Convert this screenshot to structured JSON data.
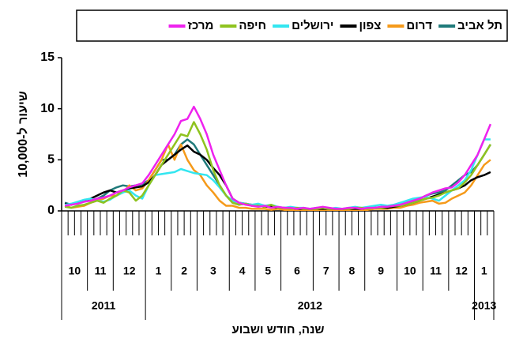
{
  "chart_data": {
    "type": "line",
    "y_label": "שיעור ל-10,000",
    "x_label": "שנה, חודש ושבוע",
    "categories": [
      "10",
      "10",
      "10",
      "10",
      "11",
      "11",
      "11",
      "11",
      "12",
      "12",
      "12",
      "12",
      "12",
      "1",
      "1",
      "1",
      "1",
      "2",
      "2",
      "2",
      "2",
      "3",
      "3",
      "3",
      "3",
      "3",
      "4",
      "4",
      "4",
      "4",
      "5",
      "5",
      "5",
      "5",
      "6",
      "6",
      "6",
      "6",
      "6",
      "7",
      "7",
      "7",
      "7",
      "8",
      "8",
      "8",
      "8",
      "9",
      "9",
      "9",
      "9",
      "9",
      "10",
      "10",
      "10",
      "10",
      "11",
      "11",
      "11",
      "11",
      "12",
      "12",
      "12",
      "12",
      "1",
      "1",
      "1"
    ],
    "years": [
      "2011",
      "2011",
      "2011",
      "2011",
      "2011",
      "2011",
      "2011",
      "2011",
      "2011",
      "2011",
      "2011",
      "2011",
      "2011",
      "2012",
      "2012",
      "2012",
      "2012",
      "2012",
      "2012",
      "2012",
      "2012",
      "2012",
      "2012",
      "2012",
      "2012",
      "2012",
      "2012",
      "2012",
      "2012",
      "2012",
      "2012",
      "2012",
      "2012",
      "2012",
      "2012",
      "2012",
      "2012",
      "2012",
      "2012",
      "2012",
      "2012",
      "2012",
      "2012",
      "2012",
      "2012",
      "2012",
      "2012",
      "2012",
      "2012",
      "2012",
      "2012",
      "2012",
      "2012",
      "2012",
      "2012",
      "2012",
      "2012",
      "2012",
      "2012",
      "2012",
      "2012",
      "2012",
      "2012",
      "2012",
      "2013",
      "2013",
      "2013"
    ],
    "ylim": [
      0,
      15
    ],
    "yticks": [
      0,
      5,
      10,
      15
    ],
    "series": [
      {
        "name": "תל אביב",
        "color": "#1f7a7a",
        "values": [
          0.8,
          0.6,
          0.8,
          1.0,
          1.0,
          1.2,
          1.5,
          2.0,
          2.3,
          2.5,
          2.4,
          2.5,
          2.6,
          3.0,
          4.0,
          5.0,
          5.0,
          5.5,
          6.5,
          7.0,
          6.5,
          5.5,
          4.5,
          3.5,
          2.5,
          1.5,
          0.8,
          0.6,
          0.7,
          0.5,
          0.5,
          0.4,
          0.4,
          0.3,
          0.3,
          0.3,
          0.2,
          0.2,
          0.2,
          0.2,
          0.3,
          0.2,
          0.2,
          0.2,
          0.2,
          0.2,
          0.2,
          0.3,
          0.3,
          0.3,
          0.4,
          0.5,
          0.6,
          0.8,
          1.0,
          1.2,
          1.5,
          1.7,
          1.8,
          2.0,
          2.5,
          3.0,
          3.5,
          3.8,
          4.5,
          5.5,
          6.5
        ]
      },
      {
        "name": "דרום",
        "color": "#f59a1a",
        "values": [
          0.5,
          0.3,
          0.4,
          0.5,
          0.8,
          1.0,
          1.2,
          1.5,
          1.5,
          1.8,
          2.5,
          2.0,
          2.2,
          3.0,
          4.0,
          5.0,
          6.5,
          5.0,
          6.5,
          5.0,
          4.0,
          3.5,
          2.5,
          1.8,
          1.0,
          0.5,
          0.5,
          0.3,
          0.3,
          0.2,
          0.2,
          0.2,
          0.1,
          0.2,
          0.1,
          0.1,
          0.1,
          0.1,
          0.1,
          0.1,
          0.1,
          0.1,
          0.1,
          0.1,
          0.1,
          0.1,
          0.1,
          0.1,
          0.2,
          0.2,
          0.2,
          0.3,
          0.3,
          0.5,
          0.6,
          0.8,
          0.9,
          1.0,
          0.7,
          0.8,
          1.2,
          1.5,
          1.8,
          2.5,
          3.5,
          4.5,
          5.0
        ]
      },
      {
        "name": "צפון",
        "color": "#000000",
        "values": [
          0.7,
          0.6,
          0.8,
          1.0,
          1.2,
          1.5,
          1.8,
          2.0,
          1.8,
          2.0,
          2.2,
          2.3,
          2.4,
          2.8,
          3.5,
          4.5,
          5.0,
          5.5,
          6.0,
          6.4,
          5.8,
          5.5,
          5.0,
          4.2,
          3.5,
          2.5,
          1.2,
          0.8,
          0.7,
          0.6,
          0.5,
          0.4,
          0.4,
          0.3,
          0.3,
          0.3,
          0.2,
          0.2,
          0.2,
          0.2,
          0.2,
          0.2,
          0.2,
          0.2,
          0.2,
          0.2,
          0.2,
          0.3,
          0.3,
          0.3,
          0.3,
          0.4,
          0.5,
          0.6,
          0.8,
          1.0,
          1.2,
          1.4,
          1.6,
          1.8,
          2.0,
          2.2,
          2.5,
          3.0,
          3.3,
          3.5,
          3.8
        ]
      },
      {
        "name": "ירושלים",
        "color": "#33e6f0",
        "values": [
          0.6,
          0.7,
          0.9,
          1.1,
          1.2,
          1.0,
          0.9,
          1.1,
          1.5,
          1.8,
          2.0,
          1.5,
          1.2,
          2.5,
          3.5,
          3.6,
          3.7,
          3.8,
          4.1,
          3.9,
          3.7,
          3.6,
          3.5,
          3.0,
          2.3,
          1.5,
          1.0,
          0.8,
          0.7,
          0.6,
          0.7,
          0.5,
          0.6,
          0.4,
          0.3,
          0.4,
          0.3,
          0.3,
          0.2,
          0.3,
          0.3,
          0.2,
          0.3,
          0.2,
          0.3,
          0.4,
          0.3,
          0.4,
          0.5,
          0.6,
          0.5,
          0.6,
          0.8,
          1.0,
          1.2,
          1.3,
          1.4,
          1.2,
          1.0,
          1.5,
          2.0,
          2.5,
          3.0,
          4.0,
          5.5,
          7.0,
          7.0
        ]
      },
      {
        "name": "חיפה",
        "color": "#8fc31f",
        "values": [
          0.4,
          0.3,
          0.5,
          0.6,
          0.8,
          1.0,
          0.8,
          1.2,
          1.5,
          2.0,
          1.8,
          1.0,
          1.5,
          2.5,
          3.5,
          4.5,
          5.5,
          6.5,
          7.5,
          7.3,
          8.7,
          7.5,
          6.0,
          4.0,
          2.5,
          1.5,
          0.8,
          0.6,
          0.7,
          0.5,
          0.5,
          0.4,
          0.6,
          0.3,
          0.3,
          0.2,
          0.3,
          0.2,
          0.2,
          0.2,
          0.3,
          0.2,
          0.2,
          0.2,
          0.2,
          0.3,
          0.3,
          0.2,
          0.3,
          0.3,
          0.4,
          0.5,
          0.5,
          0.6,
          0.8,
          1.0,
          1.2,
          1.3,
          1.5,
          1.8,
          2.0,
          2.2,
          2.8,
          3.5,
          4.5,
          5.5,
          6.5
        ]
      },
      {
        "name": "מרכז",
        "color": "#ee22ee",
        "values": [
          0.5,
          0.6,
          0.7,
          0.9,
          1.0,
          1.2,
          1.3,
          1.5,
          1.8,
          2.0,
          2.3,
          2.5,
          2.7,
          3.5,
          4.5,
          5.5,
          6.5,
          7.5,
          8.8,
          9.0,
          10.2,
          9.0,
          7.5,
          5.5,
          4.0,
          2.5,
          1.2,
          0.8,
          0.6,
          0.5,
          0.4,
          0.5,
          0.3,
          0.4,
          0.3,
          0.3,
          0.2,
          0.3,
          0.2,
          0.3,
          0.4,
          0.3,
          0.2,
          0.2,
          0.3,
          0.3,
          0.2,
          0.3,
          0.3,
          0.4,
          0.4,
          0.5,
          0.6,
          0.8,
          1.0,
          1.2,
          1.5,
          1.8,
          2.0,
          2.2,
          2.3,
          2.8,
          3.5,
          4.5,
          5.5,
          7.0,
          8.5
        ]
      }
    ]
  }
}
